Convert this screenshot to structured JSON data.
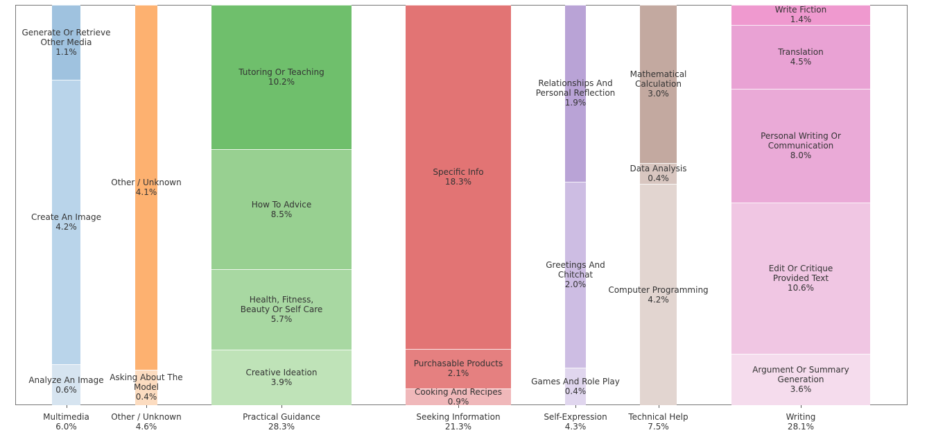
{
  "chart_data": {
    "type": "bar",
    "subtype": "marimekko (stacked, variable-width columns)",
    "grid": false,
    "categories": [
      {
        "name": "Multimedia",
        "share": "6.0%",
        "segments": [
          {
            "label": "Analyze An Image",
            "value": 0.6,
            "color": "#d6e4f0"
          },
          {
            "label": "Create An Image",
            "value": 4.2,
            "color": "#b9d4ea"
          },
          {
            "label": "Generate Or Retrieve\nOther Media",
            "value": 1.1,
            "color": "#9fc2df"
          }
        ]
      },
      {
        "name": "Other / Unknown",
        "share": "4.6%",
        "segments": [
          {
            "label": "Asking About The\nModel",
            "value": 0.4,
            "color": "#fcdcc0"
          },
          {
            "label": "Other / Unknown",
            "value": 4.1,
            "color": "#fdb170"
          }
        ]
      },
      {
        "name": "Practical Guidance",
        "share": "28.3%",
        "segments": [
          {
            "label": "Creative Ideation",
            "value": 3.9,
            "color": "#bfe3b8"
          },
          {
            "label": "Health, Fitness,\nBeauty Or Self Care",
            "value": 5.7,
            "color": "#a8d8a2"
          },
          {
            "label": "How To Advice",
            "value": 8.5,
            "color": "#98d091"
          },
          {
            "label": "Tutoring Or Teaching",
            "value": 10.2,
            "color": "#6fbf6c"
          }
        ]
      },
      {
        "name": "Seeking Information",
        "share": "21.3%",
        "segments": [
          {
            "label": "Cooking And Recipes",
            "value": 0.9,
            "color": "#f0b8ba"
          },
          {
            "label": "Purchasable Products",
            "value": 2.1,
            "color": "#e58080"
          },
          {
            "label": "Specific Info",
            "value": 18.3,
            "color": "#e27474"
          }
        ]
      },
      {
        "name": "Self-Expression",
        "share": "4.3%",
        "segments": [
          {
            "label": "Games And Role Play",
            "value": 0.4,
            "color": "#e0d6ee"
          },
          {
            "label": "Greetings And\nChitchat",
            "value": 2.0,
            "color": "#cdbde3"
          },
          {
            "label": "Relationships And\nPersonal Reflection",
            "value": 1.9,
            "color": "#b9a3d6"
          }
        ]
      },
      {
        "name": "Technical Help",
        "share": "7.5%",
        "segments": [
          {
            "label": "Computer Programming",
            "value": 4.2,
            "color": "#e2d5d0"
          },
          {
            "label": "Data Analysis",
            "value": 0.4,
            "color": "#d8c6c0"
          },
          {
            "label": "Mathematical\nCalculation",
            "value": 3.0,
            "color": "#c3a9a0"
          }
        ]
      },
      {
        "name": "Writing",
        "share": "28.1%",
        "segments": [
          {
            "label": "Argument Or Summary\nGeneration",
            "value": 3.6,
            "color": "#f5dced"
          },
          {
            "label": "Edit Or Critique\nProvided Text",
            "value": 10.6,
            "color": "#f0c6e3"
          },
          {
            "label": "Personal Writing Or\nCommunication",
            "value": 8.0,
            "color": "#eaaad7"
          },
          {
            "label": "Translation",
            "value": 4.5,
            "color": "#e9a2d4"
          },
          {
            "label": "Write Fiction",
            "value": 1.4,
            "color": "#ef99cf"
          }
        ]
      }
    ]
  }
}
